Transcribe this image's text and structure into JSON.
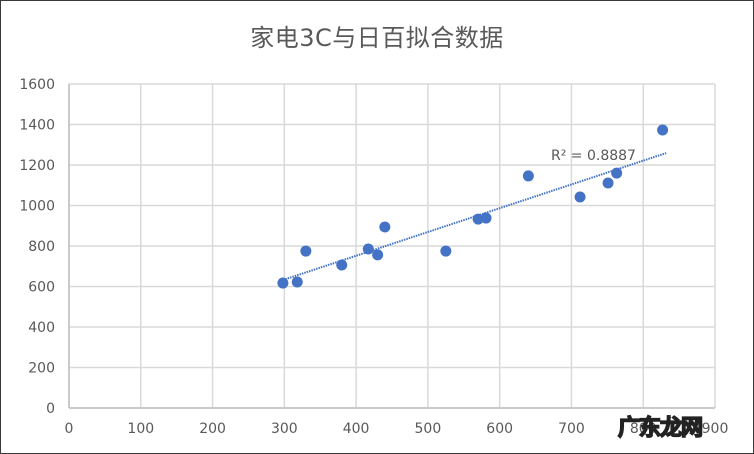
{
  "chart_data": {
    "type": "scatter",
    "title": "家电3C与日百拟合数据",
    "xlabel": "",
    "ylabel": "",
    "xlim": [
      0,
      900
    ],
    "ylim": [
      0,
      1600
    ],
    "x_ticks": [
      0,
      100,
      200,
      300,
      400,
      500,
      600,
      700,
      800,
      900
    ],
    "y_ticks": [
      0,
      200,
      400,
      600,
      800,
      1000,
      1200,
      1400,
      1600
    ],
    "grid": true,
    "legend": null,
    "series": [
      {
        "name": "data",
        "color": "#4472C4",
        "points": [
          [
            298,
            617
          ],
          [
            318,
            622
          ],
          [
            330,
            775
          ],
          [
            380,
            706
          ],
          [
            417,
            785
          ],
          [
            430,
            756
          ],
          [
            440,
            894
          ],
          [
            525,
            775
          ],
          [
            570,
            933
          ],
          [
            581,
            938
          ],
          [
            640,
            1146
          ],
          [
            712,
            1042
          ],
          [
            751,
            1111
          ],
          [
            763,
            1160
          ],
          [
            827,
            1373
          ]
        ]
      }
    ],
    "trendline": {
      "type": "linear",
      "style": "dotted",
      "color": "#4472C4",
      "from": [
        298,
        632
      ],
      "to": [
        832,
        1259
      ],
      "label": "R² = 0.8887"
    }
  },
  "watermark": "广东龙网"
}
